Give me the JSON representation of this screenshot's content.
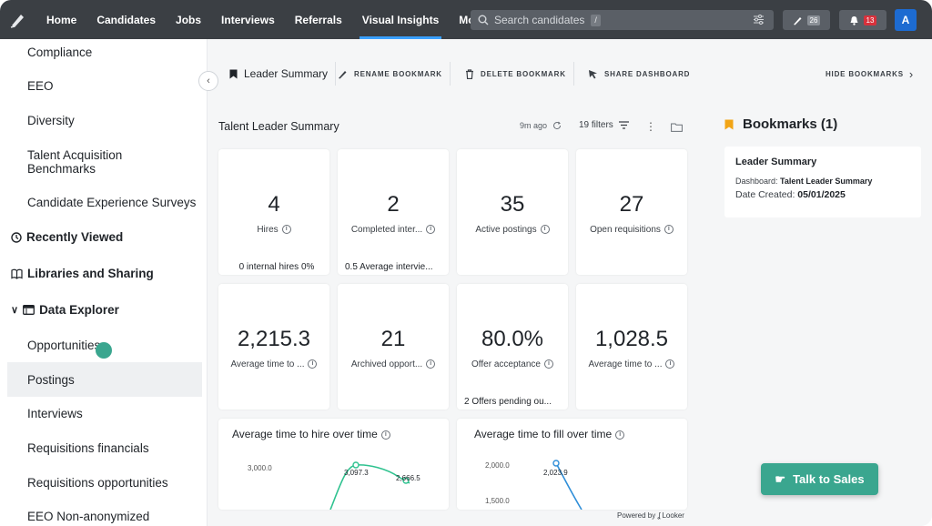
{
  "nav": {
    "items": [
      "Home",
      "Candidates",
      "Jobs",
      "Interviews",
      "Referrals",
      "Visual Insights",
      "More"
    ],
    "active": "Visual Insights",
    "search_placeholder": "Search candidates",
    "search_shortcut": "/",
    "compose_count": "26",
    "notif_count": "13",
    "avatar_initial": "A"
  },
  "sidebar": {
    "items": [
      "Compliance",
      "EEO",
      "Diversity",
      "Talent Acquisition Benchmarks",
      "Candidate Experience Surveys"
    ],
    "sections": [
      "Recently Viewed",
      "Libraries and Sharing",
      "Data Explorer"
    ],
    "explorer_items": [
      "Opportunities",
      "Postings",
      "Interviews",
      "Requisitions financials",
      "Requisitions opportunities",
      "EEO Non-anonymized"
    ],
    "active_item": "Postings"
  },
  "toolbar": {
    "leader_summary": "Leader Summary",
    "rename": "RENAME BOOKMARK",
    "delete": "DELETE BOOKMARK",
    "share": "SHARE DASHBOARD",
    "hide": "HIDE BOOKMARKS"
  },
  "dashboard": {
    "title": "Talent Leader Summary",
    "updated": "9m ago",
    "filters": "19 filters",
    "tiles": [
      {
        "value": "4",
        "label": "Hires",
        "sub": "0 internal hires 0%"
      },
      {
        "value": "2",
        "label": "Completed inter...",
        "sub": "0.5 Average intervie..."
      },
      {
        "value": "35",
        "label": "Active postings",
        "sub": ""
      },
      {
        "value": "27",
        "label": "Open requisitions",
        "sub": ""
      },
      {
        "value": "2,215.3",
        "label": "Average time to ...",
        "sub": ""
      },
      {
        "value": "21",
        "label": "Archived opport...",
        "sub": ""
      },
      {
        "value": "80.0%",
        "label": "Offer acceptance",
        "sub": "2 Offers pending ou..."
      },
      {
        "value": "1,028.5",
        "label": "Average time to ...",
        "sub": ""
      }
    ],
    "powered_by": "Powered by ʆ Looker"
  },
  "charts": [
    {
      "title": "Average time to hire over time"
    },
    {
      "title": "Average time to fill over time"
    }
  ],
  "chart_data": [
    {
      "type": "line",
      "title": "Average time to hire over time",
      "yticks": [
        "3,000.0"
      ],
      "point_labels": [
        "3,097.3",
        "2,666.5"
      ],
      "series": [
        {
          "values": [
            3097.3,
            2666.5
          ]
        }
      ]
    },
    {
      "type": "line",
      "title": "Average time to fill over time",
      "yticks": [
        "2,000.0",
        "1,500.0"
      ],
      "point_labels": [
        "2,023.9"
      ],
      "series": [
        {
          "values": [
            2023.9
          ]
        }
      ]
    }
  ],
  "bookmarks": {
    "header": "Bookmarks (1)",
    "card_title": "Leader Summary",
    "dashboard_label": "Dashboard:",
    "dashboard_value": "Talent Leader Summary",
    "date_label": "Date Created:",
    "date_value": "05/01/2025"
  },
  "cta": {
    "label": "Talk to Sales"
  },
  "colors": {
    "accent": "#3aa68f",
    "nav_bg": "#3b3f44",
    "chart_line": "#2ec28f",
    "chart_line2": "#2f8ed8"
  }
}
